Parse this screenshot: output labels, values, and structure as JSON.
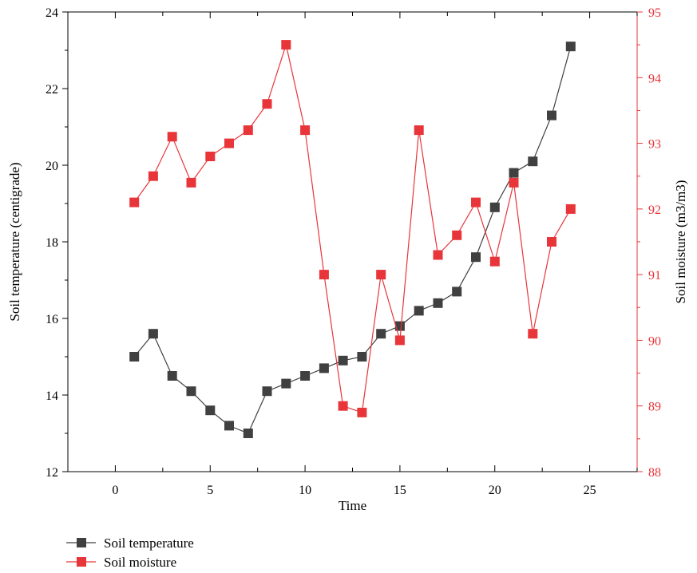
{
  "chart_data": {
    "type": "line",
    "title": "",
    "xlabel": "Time",
    "ylabel_left": "Soil temperature (centigrade)",
    "ylabel_right": "Soil moisture (m3/m3)",
    "xlim": [
      -2.5,
      27.5
    ],
    "ylim_left": [
      12,
      24
    ],
    "ylim_right": [
      88,
      95
    ],
    "x_ticks": [
      0,
      5,
      10,
      15,
      20,
      25
    ],
    "y_left_ticks": [
      12,
      14,
      16,
      18,
      20,
      22,
      24
    ],
    "y_right_ticks": [
      88,
      89,
      90,
      91,
      92,
      93,
      94,
      95
    ],
    "grid": false,
    "legend_position": "bottom-left",
    "x": [
      1,
      2,
      3,
      4,
      5,
      6,
      7,
      8,
      9,
      10,
      11,
      12,
      13,
      14,
      15,
      16,
      17,
      18,
      19,
      20,
      21,
      22,
      23,
      24
    ],
    "series": [
      {
        "name": "Soil temperature",
        "axis": "left",
        "color": "#404040",
        "values": [
          15.0,
          15.6,
          14.5,
          14.1,
          13.6,
          13.2,
          13.0,
          14.1,
          14.3,
          14.5,
          14.7,
          14.9,
          15.0,
          15.6,
          15.8,
          16.2,
          16.4,
          16.7,
          17.6,
          18.9,
          19.8,
          20.1,
          21.3,
          23.1
        ]
      },
      {
        "name": "Soil moisture",
        "axis": "right",
        "color": "#e8353a",
        "values": [
          92.1,
          92.5,
          93.1,
          92.4,
          92.8,
          93.0,
          93.2,
          93.6,
          94.5,
          93.2,
          91.0,
          89.0,
          88.9,
          91.0,
          90.0,
          93.2,
          91.3,
          91.6,
          92.1,
          91.2,
          92.4,
          90.1,
          91.5,
          92.0
        ]
      }
    ],
    "colors": {
      "axis": "#000000",
      "right_axis": "#e8353a"
    }
  }
}
